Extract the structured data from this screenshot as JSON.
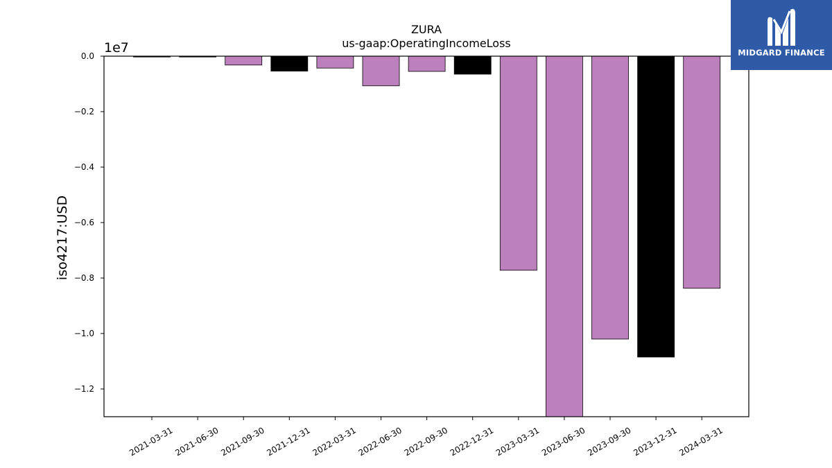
{
  "colors": {
    "bar_primary": "#bc80bd",
    "bar_alt": "#000000",
    "axis": "#000000",
    "logo_bg": "#2f5aa8",
    "logo_fg": "#ffffff"
  },
  "logo": {
    "text": "MIDGARD FINANCE",
    "icon": "midgard-logo-icon"
  },
  "chart_data": {
    "type": "bar",
    "title": "ZURA",
    "subtitle": "us-gaap:OperatingIncomeLoss",
    "xlabel": "",
    "ylabel": "iso4217:USD",
    "y_offset_label": "1e7",
    "ylim": [
      -1.3,
      0.0
    ],
    "y_ticks": [
      0.0,
      -0.2,
      -0.4,
      -0.6,
      -0.8,
      -1.0,
      -1.2
    ],
    "y_tick_labels": [
      "0.0",
      "−0.2",
      "−0.4",
      "−0.6",
      "−0.8",
      "−1.0",
      "−1.2"
    ],
    "grid": false,
    "categories": [
      "2021-03-31",
      "2021-06-30",
      "2021-09-30",
      "2021-12-31",
      "2022-03-31",
      "2022-06-30",
      "2022-09-30",
      "2022-12-31",
      "2023-03-31",
      "2023-06-30",
      "2023-09-30",
      "2023-12-31",
      "2024-03-31"
    ],
    "values": [
      -0.003,
      -0.003,
      -0.032,
      -0.054,
      -0.043,
      -0.107,
      -0.055,
      -0.065,
      -0.772,
      -1.3,
      -1.02,
      -1.085,
      -0.837
    ],
    "value_units": "1e7 USD",
    "highlight_categories": [
      "2021-03-31",
      "2021-06-30",
      "2021-12-31",
      "2022-12-31",
      "2023-12-31"
    ]
  }
}
